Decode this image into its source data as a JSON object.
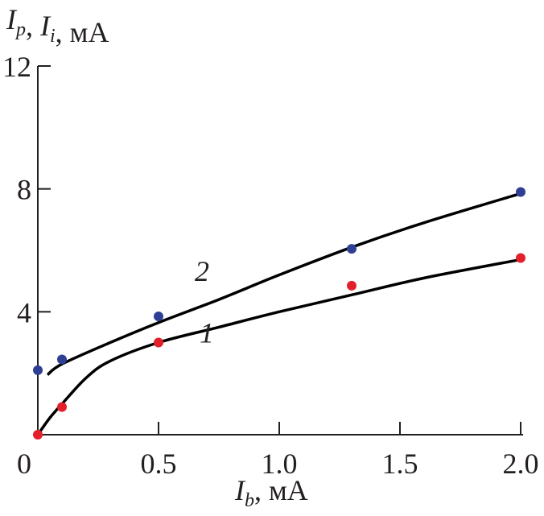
{
  "chart_data": {
    "type": "scatter",
    "xlabel": {
      "main": "I",
      "sub": "b",
      "unit": ", мА"
    },
    "ylabel": {
      "parts": [
        {
          "main": "I",
          "sub": "p"
        },
        {
          "main": "I",
          "sub": "i"
        }
      ],
      "unit": ", мА"
    },
    "xlim": [
      0,
      2.0
    ],
    "ylim": [
      0,
      12
    ],
    "xticks": [
      "0",
      "0.5",
      "1.0",
      "1.5",
      "2.0"
    ],
    "xtick_values": [
      0,
      0.5,
      1.0,
      1.5,
      2.0
    ],
    "yticks": [
      "4",
      "8",
      "12"
    ],
    "ytick_values": [
      4,
      8,
      12
    ],
    "grid": false,
    "series": [
      {
        "name": "1",
        "color": "#e3202a",
        "points": {
          "x": [
            0,
            0.1,
            0.5,
            1.3,
            2.0
          ],
          "y": [
            0,
            0.9,
            3.0,
            4.85,
            5.75
          ]
        },
        "curve": {
          "x": [
            0,
            0.05,
            0.1,
            0.2,
            0.3,
            0.5,
            0.75,
            1.0,
            1.3,
            1.6,
            2.0
          ],
          "y": [
            0,
            0.55,
            1.0,
            1.85,
            2.4,
            3.0,
            3.5,
            4.0,
            4.55,
            5.1,
            5.7
          ]
        },
        "label_at": [
          0.7,
          3.0
        ]
      },
      {
        "name": "2",
        "color": "#2e3f94",
        "points": {
          "x": [
            0,
            0.1,
            0.5,
            1.3,
            2.0
          ],
          "y": [
            2.1,
            2.45,
            3.85,
            6.05,
            7.9
          ]
        },
        "curve": {
          "x": [
            0.04,
            0.1,
            0.3,
            0.5,
            0.75,
            1.0,
            1.3,
            1.6,
            2.0
          ],
          "y": [
            1.95,
            2.3,
            3.0,
            3.65,
            4.4,
            5.2,
            6.1,
            6.9,
            7.85
          ]
        },
        "label_at": [
          0.68,
          5.0
        ]
      }
    ]
  }
}
